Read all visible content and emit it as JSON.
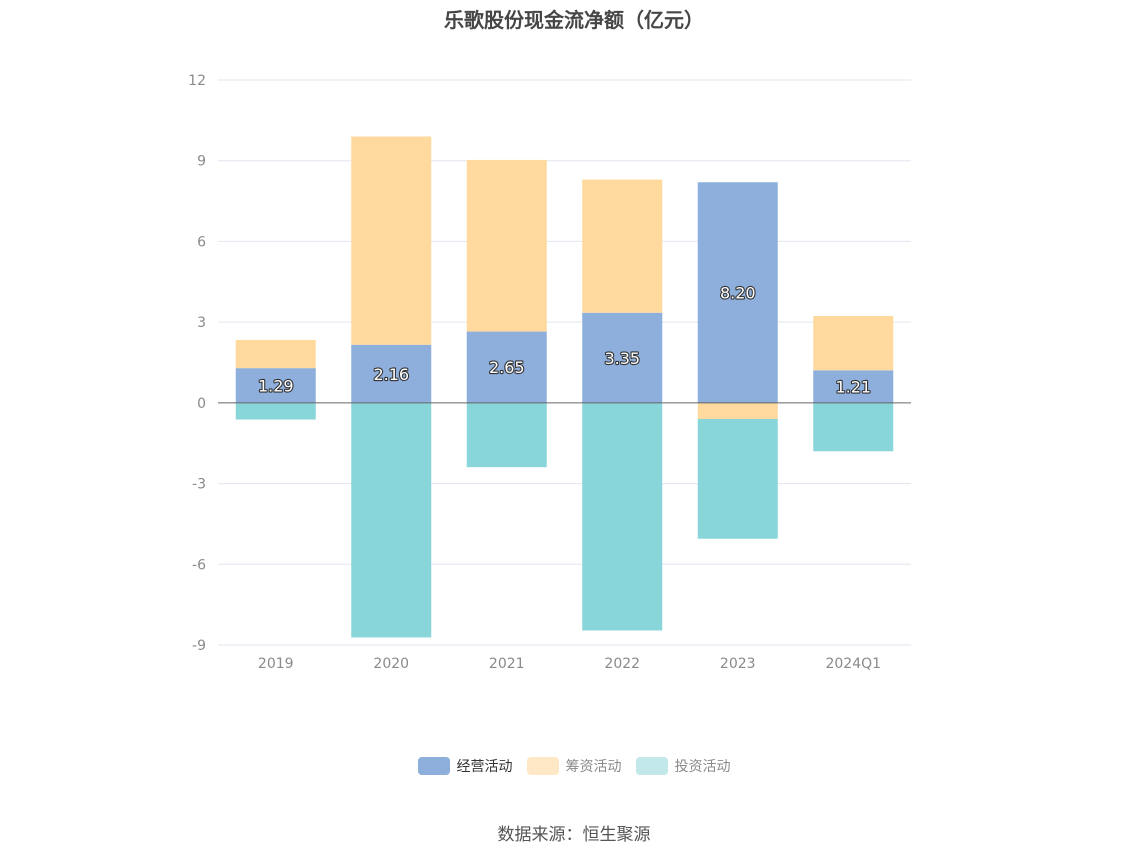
{
  "chart_data": {
    "type": "bar",
    "stacked": true,
    "title": "乐歌股份现金流净额（亿元）",
    "categories": [
      "2019",
      "2020",
      "2021",
      "2022",
      "2023",
      "2024Q1"
    ],
    "ylim": [
      -9,
      12
    ],
    "yticks": [
      12,
      9,
      6,
      3,
      0,
      -3,
      -6,
      -9
    ],
    "grid": true,
    "legend_position": "bottom",
    "series": [
      {
        "name": "经营活动",
        "color": "#8eaedb",
        "values": [
          1.29,
          2.16,
          2.65,
          3.35,
          8.2,
          1.21
        ],
        "labels": [
          "1.29",
          "2.16",
          "2.65",
          "3.35",
          "8.20",
          "1.21"
        ],
        "legend_state": "active"
      },
      {
        "name": "筹资活动",
        "color": "#ffd99d",
        "values": [
          1.05,
          7.74,
          6.38,
          4.95,
          -0.6,
          2.02
        ],
        "legend_state": "inactive"
      },
      {
        "name": "投资活动",
        "color": "#88d6da",
        "values": [
          -0.62,
          -8.72,
          -2.39,
          -8.46,
          -4.45,
          -1.8
        ],
        "legend_state": "inactive"
      }
    ]
  },
  "legend_colors": {
    "经营活动": "#8eaedb",
    "筹资活动": "#ffe8c6",
    "投资活动": "#c2e8ea"
  },
  "source_text": "数据来源：恒生聚源"
}
